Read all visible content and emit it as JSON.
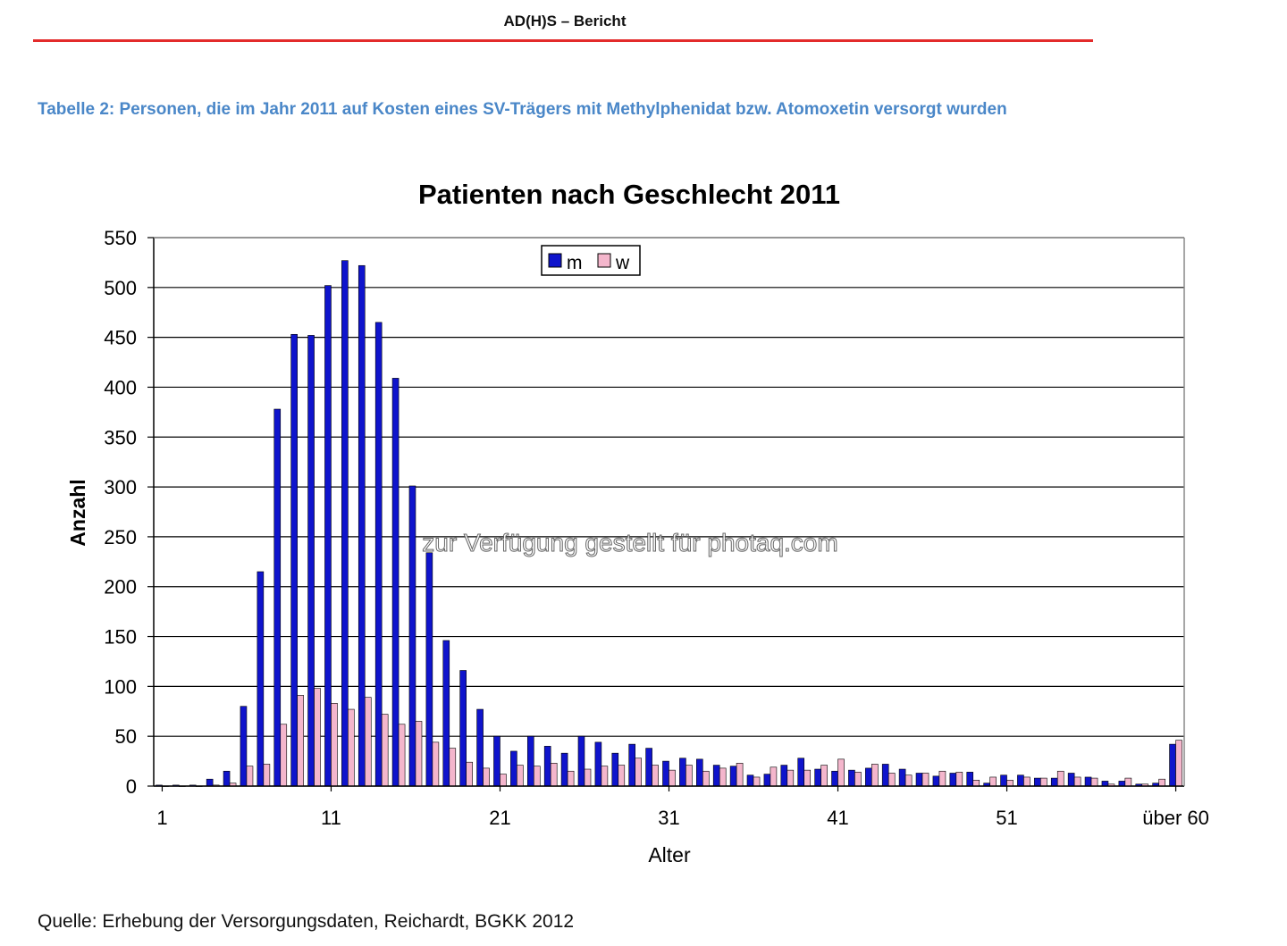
{
  "document": {
    "header": "AD(H)S – Bericht",
    "caption": "Tabelle 2: Personen, die im Jahr 2011 auf Kosten eines SV-Trägers mit Methylphenidat bzw. Atomoxetin versorgt wurden",
    "source": "Quelle: Erhebung der Versorgungsdaten, Reichardt,  BGKK 2012",
    "watermark": "zur Verfügung gestellt für photaq.com"
  },
  "colors": {
    "header_rule": "#e32b2b",
    "caption": "#4a87c8",
    "series_m": "#0f14cc",
    "series_w": "#f4b6cc",
    "grid": "#000000"
  },
  "chart_data": {
    "type": "bar",
    "title": "Patienten nach Geschlecht 2011",
    "xlabel": "Alter",
    "ylabel": "Anzahl",
    "ylim": [
      0,
      550
    ],
    "yticks": [
      0,
      50,
      100,
      150,
      200,
      250,
      300,
      350,
      400,
      450,
      500,
      550
    ],
    "grid": true,
    "legend_position": "top-center",
    "categories": [
      "1",
      "2",
      "3",
      "4",
      "5",
      "6",
      "7",
      "8",
      "9",
      "10",
      "11",
      "12",
      "13",
      "14",
      "15",
      "16",
      "17",
      "18",
      "19",
      "20",
      "21",
      "22",
      "23",
      "24",
      "25",
      "26",
      "27",
      "28",
      "29",
      "30",
      "31",
      "32",
      "33",
      "34",
      "35",
      "36",
      "37",
      "38",
      "39",
      "40",
      "41",
      "42",
      "43",
      "44",
      "45",
      "46",
      "47",
      "48",
      "49",
      "50",
      "51",
      "52",
      "53",
      "54",
      "55",
      "56",
      "57",
      "58",
      "59",
      "60",
      "über 60"
    ],
    "xtick_labels": [
      {
        "index": 0,
        "label": "1"
      },
      {
        "index": 10,
        "label": "11"
      },
      {
        "index": 20,
        "label": "21"
      },
      {
        "index": 30,
        "label": "31"
      },
      {
        "index": 40,
        "label": "41"
      },
      {
        "index": 50,
        "label": "51"
      },
      {
        "index": 60,
        "label": "über 60"
      }
    ],
    "series": [
      {
        "name": "m",
        "values": [
          1,
          1,
          1,
          7,
          15,
          80,
          215,
          378,
          453,
          452,
          502,
          527,
          522,
          465,
          409,
          301,
          234,
          146,
          116,
          77,
          50,
          35,
          50,
          40,
          33,
          50,
          44,
          33,
          42,
          38,
          25,
          28,
          27,
          21,
          20,
          11,
          12,
          21,
          28,
          17,
          15,
          16,
          18,
          22,
          17,
          13,
          10,
          13,
          14,
          3,
          11,
          11,
          8,
          8,
          13,
          9,
          5,
          5,
          2,
          3,
          42
        ]
      },
      {
        "name": "w",
        "values": [
          0,
          0,
          0,
          1,
          3,
          20,
          22,
          62,
          91,
          98,
          83,
          77,
          89,
          72,
          62,
          65,
          44,
          38,
          24,
          18,
          12,
          21,
          20,
          23,
          15,
          17,
          20,
          21,
          28,
          21,
          16,
          21,
          15,
          18,
          23,
          9,
          19,
          16,
          16,
          21,
          27,
          14,
          22,
          13,
          11,
          13,
          15,
          14,
          6,
          9,
          6,
          9,
          8,
          15,
          9,
          8,
          2,
          8,
          2,
          7,
          46
        ]
      }
    ]
  }
}
